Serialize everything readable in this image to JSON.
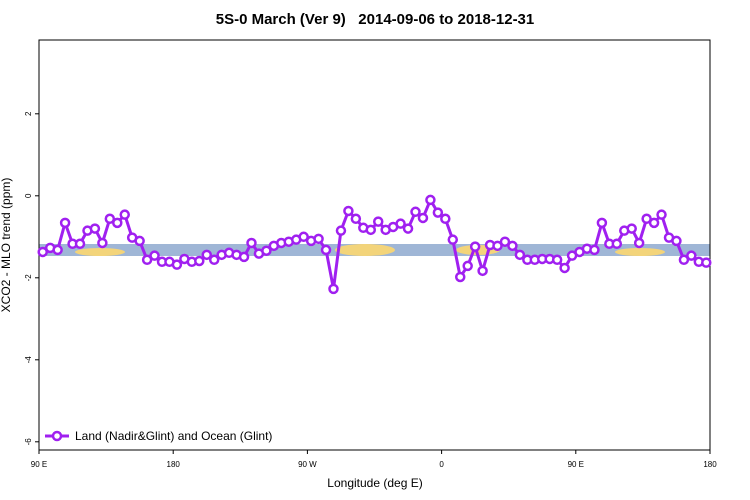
{
  "chart_data": {
    "type": "line",
    "title": "5S-0 March (Ver 9)   2014-09-06 to 2018-12-31",
    "xlabel": "Longitude (deg E)",
    "ylabel": "XCO2 - MLO trend (ppm)",
    "xlim": [
      90,
      540
    ],
    "xticks": [
      {
        "value": 90,
        "label": "90 E"
      },
      {
        "value": 180,
        "label": "180"
      },
      {
        "value": 270,
        "label": "90 W"
      },
      {
        "value": 360,
        "label": "0"
      },
      {
        "value": 450,
        "label": "90 E"
      },
      {
        "value": 540,
        "label": "180"
      }
    ],
    "ylim": [
      -6.2,
      3.8
    ],
    "yticks": [
      2,
      0,
      -2,
      -4,
      -6
    ],
    "legend": "bottom-left",
    "x": [
      92.5,
      97.5,
      102.5,
      107.5,
      112.5,
      117.5,
      122.5,
      127.5,
      132.5,
      137.5,
      142.5,
      147.5,
      152.5,
      157.5,
      162.5,
      167.5,
      172.5,
      177.5,
      182.5,
      187.5,
      192.5,
      197.5,
      202.5,
      207.5,
      212.5,
      217.5,
      222.5,
      227.5,
      232.5,
      237.5,
      242.5,
      247.5,
      252.5,
      257.5,
      262.5,
      267.5,
      272.5,
      277.5,
      282.5,
      287.5,
      292.5,
      297.5,
      302.5,
      307.5,
      312.5,
      317.5,
      322.5,
      327.5,
      332.5,
      337.5,
      342.5,
      347.5,
      352.5,
      357.5,
      362.5,
      367.5,
      372.5,
      377.5,
      382.5,
      387.5,
      392.5,
      397.5,
      402.5,
      407.5,
      412.5,
      417.5,
      422.5,
      427.5,
      432.5,
      437.5,
      442.5,
      447.5,
      452.5,
      457.5,
      462.5,
      467.5,
      472.5,
      477.5,
      482.5,
      487.5,
      492.5,
      497.5,
      502.5,
      507.5,
      512.5,
      517.5,
      522.5,
      527.5,
      532.5,
      537.5
    ],
    "series": [
      {
        "name": "Land (Nadir&Glint) and Ocean (Glint)",
        "color": "#a020f0",
        "values": [
          -1.37,
          -1.27,
          -1.32,
          -0.66,
          -1.17,
          -1.17,
          -0.85,
          -0.8,
          -1.15,
          -0.56,
          -0.66,
          -0.46,
          -1.02,
          -1.1,
          -1.56,
          -1.46,
          -1.61,
          -1.61,
          -1.68,
          -1.54,
          -1.61,
          -1.59,
          -1.44,
          -1.56,
          -1.44,
          -1.39,
          -1.44,
          -1.49,
          -1.15,
          -1.41,
          -1.34,
          -1.22,
          -1.15,
          -1.12,
          -1.07,
          -1.0,
          -1.1,
          -1.05,
          -1.32,
          -2.27,
          -0.85,
          -0.37,
          -0.56,
          -0.78,
          -0.83,
          -0.63,
          -0.83,
          -0.76,
          -0.68,
          -0.8,
          -0.39,
          -0.54,
          -0.1,
          -0.41,
          -0.56,
          -1.07,
          -1.98,
          -1.71,
          -1.24,
          -1.83,
          -1.2,
          -1.22,
          -1.12,
          -1.22,
          -1.44,
          -1.56,
          -1.56,
          -1.54,
          -1.54,
          -1.56,
          -1.76,
          -1.46,
          -1.37,
          -1.29,
          -1.32,
          -0.66,
          -1.17,
          -1.17,
          -0.85,
          -0.8,
          -1.15,
          -0.56,
          -0.66,
          -0.46,
          -1.02,
          -1.1,
          -1.56,
          -1.46,
          -1.61,
          -1.63
        ]
      }
    ]
  }
}
